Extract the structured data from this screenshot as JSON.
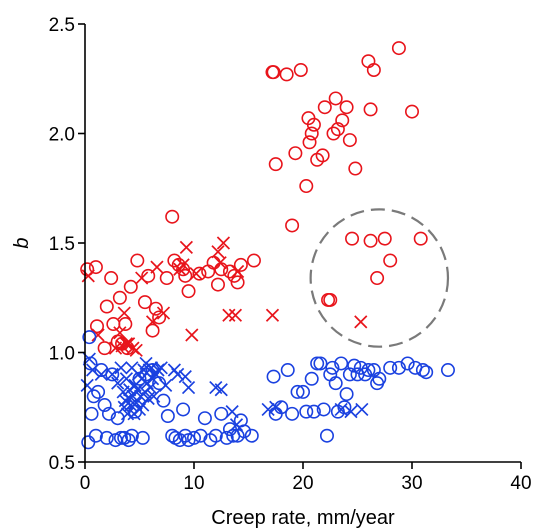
{
  "chart_data": {
    "type": "scatter",
    "title": "",
    "xlabel": "Creep rate, mm/year",
    "ylabel": "b",
    "xlim": [
      0,
      40
    ],
    "ylim": [
      0.5,
      2.5
    ],
    "xticks": [
      0,
      10,
      20,
      30,
      40
    ],
    "yticks": [
      0.5,
      1.0,
      1.5,
      2.0,
      2.5
    ],
    "xtick_labels": [
      "0",
      "10",
      "20",
      "30",
      "40"
    ],
    "ytick_labels": [
      "0.5",
      "1.0",
      "1.5",
      "2.0",
      "2.5"
    ],
    "grid": false,
    "legend": false,
    "colors": {
      "red": "#e8141b",
      "blue": "#1a41e0",
      "dash": "#7a7a7a"
    },
    "highlight_circle": {
      "center": [
        27,
        1.34
      ],
      "radius_x_units": 6.3
    },
    "series": [
      {
        "color": "red",
        "marker": "circle",
        "points": [
          [
            0.2,
            1.38
          ],
          [
            1,
            1.39
          ],
          [
            1.1,
            1.12
          ],
          [
            1.8,
            1.02
          ],
          [
            2,
            1.21
          ],
          [
            2.4,
            1.34
          ],
          [
            2.6,
            1.13
          ],
          [
            3,
            1.05
          ],
          [
            3.2,
            1.25
          ],
          [
            3.4,
            1.04
          ],
          [
            3.7,
            1.13
          ],
          [
            3.9,
            1.02
          ],
          [
            4.2,
            1.3
          ],
          [
            4.8,
            1.42
          ],
          [
            5.5,
            1.23
          ],
          [
            5.8,
            1.35
          ],
          [
            6.2,
            1.1
          ],
          [
            6.5,
            1.2
          ],
          [
            6.8,
            1.16
          ],
          [
            7.5,
            1.34
          ],
          [
            8,
            1.62
          ],
          [
            8.2,
            1.42
          ],
          [
            8.6,
            1.4
          ],
          [
            9,
            1.38
          ],
          [
            9.2,
            1.35
          ],
          [
            9.5,
            1.28
          ],
          [
            10.5,
            1.36
          ],
          [
            11.3,
            1.37
          ],
          [
            11.8,
            1.41
          ],
          [
            12.2,
            1.31
          ],
          [
            12.5,
            1.38
          ],
          [
            13.3,
            1.37
          ],
          [
            13.7,
            1.35
          ],
          [
            14,
            1.32
          ],
          [
            14.3,
            1.4
          ],
          [
            15.5,
            1.42
          ],
          [
            17.2,
            2.28
          ],
          [
            17.3,
            2.28
          ],
          [
            17.5,
            1.86
          ],
          [
            18.5,
            2.27
          ],
          [
            19,
            1.58
          ],
          [
            19.3,
            1.91
          ],
          [
            19.8,
            2.29
          ],
          [
            20.3,
            1.76
          ],
          [
            20.5,
            2.07
          ],
          [
            20.6,
            1.96
          ],
          [
            20.8,
            2.0
          ],
          [
            21,
            2.04
          ],
          [
            21.3,
            1.88
          ],
          [
            21.8,
            1.9
          ],
          [
            22,
            2.12
          ],
          [
            22.3,
            1.24
          ],
          [
            22.5,
            1.24
          ],
          [
            22.8,
            2.0
          ],
          [
            23,
            2.16
          ],
          [
            23.2,
            2.02
          ],
          [
            23.6,
            2.06
          ],
          [
            24,
            2.12
          ],
          [
            24.3,
            1.97
          ],
          [
            24.5,
            1.52
          ],
          [
            24.8,
            1.84
          ],
          [
            26,
            2.33
          ],
          [
            26.2,
            2.11
          ],
          [
            26.5,
            2.29
          ],
          [
            27.5,
            1.52
          ],
          [
            28,
            1.42
          ],
          [
            26.2,
            1.51
          ],
          [
            26.8,
            1.34
          ],
          [
            28.8,
            2.39
          ],
          [
            30,
            2.1
          ],
          [
            30.8,
            1.52
          ]
        ]
      },
      {
        "color": "red",
        "marker": "cross",
        "points": [
          [
            0.3,
            1.35
          ],
          [
            1.2,
            1.08
          ],
          [
            2.8,
            1.02
          ],
          [
            3.2,
            1.09
          ],
          [
            3.4,
            1.03
          ],
          [
            3.6,
            1.18
          ],
          [
            3.8,
            1.04
          ],
          [
            4,
            1.04
          ],
          [
            4.4,
            1.02
          ],
          [
            4.7,
            1.01
          ],
          [
            5.2,
            1.34
          ],
          [
            6.2,
            1.14
          ],
          [
            6.6,
            1.39
          ],
          [
            7.2,
            1.18
          ],
          [
            8.7,
            1.38
          ],
          [
            9,
            1.4
          ],
          [
            9.3,
            1.48
          ],
          [
            9.8,
            1.08
          ],
          [
            10.2,
            1.36
          ],
          [
            12.2,
            1.46
          ],
          [
            12.4,
            1.41
          ],
          [
            12.7,
            1.5
          ],
          [
            13.2,
            1.17
          ],
          [
            13.8,
            1.17
          ],
          [
            14,
            1.37
          ],
          [
            17.2,
            1.17
          ],
          [
            25.3,
            1.14
          ]
        ]
      },
      {
        "color": "blue",
        "marker": "circle",
        "points": [
          [
            0.3,
            0.59
          ],
          [
            0.4,
            1.07
          ],
          [
            0.5,
            0.95
          ],
          [
            0.6,
            0.72
          ],
          [
            0.8,
            0.8
          ],
          [
            1,
            0.62
          ],
          [
            1.2,
            0.82
          ],
          [
            1.5,
            0.92
          ],
          [
            1.8,
            0.76
          ],
          [
            2,
            0.61
          ],
          [
            2.2,
            0.72
          ],
          [
            2.5,
            0.9
          ],
          [
            2.8,
            0.6
          ],
          [
            3,
            0.7
          ],
          [
            3.3,
            0.61
          ],
          [
            3.6,
            0.61
          ],
          [
            4,
            0.6
          ],
          [
            4.3,
            0.62
          ],
          [
            4.6,
            0.73
          ],
          [
            5,
            0.88
          ],
          [
            5.3,
            0.61
          ],
          [
            5.6,
            0.9
          ],
          [
            6.2,
            0.92
          ],
          [
            6.8,
            0.86
          ],
          [
            7.2,
            0.78
          ],
          [
            7.6,
            0.71
          ],
          [
            8,
            0.62
          ],
          [
            8.3,
            0.61
          ],
          [
            8.7,
            0.6
          ],
          [
            9,
            0.74
          ],
          [
            9.2,
            0.62
          ],
          [
            9.5,
            0.6
          ],
          [
            10,
            0.61
          ],
          [
            10.6,
            0.62
          ],
          [
            11,
            0.7
          ],
          [
            11.5,
            0.6
          ],
          [
            12,
            0.62
          ],
          [
            12.5,
            0.72
          ],
          [
            13,
            0.61
          ],
          [
            13.3,
            0.65
          ],
          [
            13.6,
            0.62
          ],
          [
            14,
            0.62
          ],
          [
            14.3,
            0.69
          ],
          [
            14.6,
            0.64
          ],
          [
            15.3,
            0.62
          ],
          [
            17.3,
            0.89
          ],
          [
            17.5,
            0.72
          ],
          [
            18,
            0.75
          ],
          [
            18.6,
            0.92
          ],
          [
            19,
            0.72
          ],
          [
            19.5,
            0.82
          ],
          [
            20,
            0.82
          ],
          [
            20.3,
            0.73
          ],
          [
            20.8,
            0.88
          ],
          [
            21,
            0.73
          ],
          [
            21.3,
            0.95
          ],
          [
            21.6,
            0.95
          ],
          [
            21.9,
            0.74
          ],
          [
            22.2,
            0.62
          ],
          [
            22.5,
            0.9
          ],
          [
            22.7,
            0.93
          ],
          [
            23,
            0.86
          ],
          [
            23.2,
            0.73
          ],
          [
            23.5,
            0.95
          ],
          [
            23.8,
            0.75
          ],
          [
            24,
            0.81
          ],
          [
            24.3,
            0.9
          ],
          [
            24.7,
            0.94
          ],
          [
            25,
            0.9
          ],
          [
            25.3,
            0.93
          ],
          [
            25.7,
            0.9
          ],
          [
            26,
            0.92
          ],
          [
            26.5,
            0.92
          ],
          [
            26.8,
            0.86
          ],
          [
            27,
            0.88
          ],
          [
            28,
            0.93
          ],
          [
            28.8,
            0.93
          ],
          [
            29.6,
            0.95
          ],
          [
            30.3,
            0.93
          ],
          [
            31,
            0.92
          ],
          [
            31.3,
            0.91
          ],
          [
            33.3,
            0.92
          ]
        ]
      },
      {
        "color": "blue",
        "marker": "cross",
        "points": [
          [
            0.2,
            0.85
          ],
          [
            0.4,
            0.97
          ],
          [
            0.7,
            0.92
          ],
          [
            1.5,
            0.9
          ],
          [
            2.5,
            0.9
          ],
          [
            3,
            0.86
          ],
          [
            3.3,
            0.93
          ],
          [
            3.5,
            0.82
          ],
          [
            3.6,
            0.75
          ],
          [
            3.7,
            0.78
          ],
          [
            3.8,
            0.88
          ],
          [
            3.9,
            0.72
          ],
          [
            4,
            0.79
          ],
          [
            4.1,
            0.83
          ],
          [
            4.2,
            0.76
          ],
          [
            4.3,
            0.93
          ],
          [
            4.4,
            0.8
          ],
          [
            4.5,
            0.72
          ],
          [
            4.6,
            0.85
          ],
          [
            4.7,
            0.77
          ],
          [
            4.8,
            0.83
          ],
          [
            4.9,
            0.9
          ],
          [
            5,
            0.74
          ],
          [
            5.1,
            0.8
          ],
          [
            5.2,
            0.88
          ],
          [
            5.3,
            0.76
          ],
          [
            5.4,
            0.92
          ],
          [
            5.5,
            0.82
          ],
          [
            5.6,
            0.95
          ],
          [
            5.7,
            0.86
          ],
          [
            5.8,
            0.79
          ],
          [
            5.9,
            0.92
          ],
          [
            6,
            0.84
          ],
          [
            6.1,
            0.93
          ],
          [
            6.2,
            0.88
          ],
          [
            6.3,
            0.8
          ],
          [
            6.5,
            0.9
          ],
          [
            6.7,
            0.92
          ],
          [
            7,
            0.93
          ],
          [
            7.4,
            0.85
          ],
          [
            8.2,
            0.92
          ],
          [
            8.5,
            0.9
          ],
          [
            9.2,
            0.89
          ],
          [
            9.5,
            0.84
          ],
          [
            12,
            0.84
          ],
          [
            12.5,
            0.83
          ],
          [
            13.5,
            0.73
          ],
          [
            13.9,
            0.67
          ],
          [
            16.8,
            0.74
          ],
          [
            17.5,
            0.75
          ],
          [
            23.5,
            0.74
          ],
          [
            24.4,
            0.73
          ],
          [
            25.4,
            0.74
          ]
        ]
      }
    ]
  }
}
